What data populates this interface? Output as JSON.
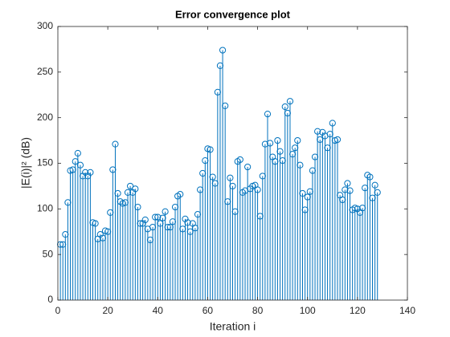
{
  "chart_data": {
    "type": "stem",
    "title": "Error convergence plot",
    "xlabel": "Iteration i",
    "ylabel": "|E(i)|² (dB)",
    "color": "#0072bd",
    "xlim": [
      0,
      140
    ],
    "xticks": [
      0,
      20,
      40,
      60,
      80,
      100,
      120,
      140
    ],
    "ylim": [
      0,
      300
    ],
    "yticks": [
      0,
      50,
      100,
      150,
      200,
      250,
      300
    ],
    "x": [
      1,
      2,
      3,
      4,
      5,
      6,
      7,
      8,
      9,
      10,
      11,
      12,
      13,
      14,
      15,
      16,
      17,
      18,
      19,
      20,
      21,
      22,
      23,
      24,
      25,
      26,
      27,
      28,
      29,
      30,
      31,
      32,
      33,
      34,
      35,
      36,
      37,
      38,
      39,
      40,
      41,
      42,
      43,
      44,
      45,
      46,
      47,
      48,
      49,
      50,
      51,
      52,
      53,
      54,
      55,
      56,
      57,
      58,
      59,
      60,
      61,
      62,
      63,
      64,
      65,
      66,
      67,
      68,
      69,
      70,
      71,
      72,
      73,
      74,
      75,
      76,
      77,
      78,
      79,
      80,
      81,
      82,
      83,
      84,
      85,
      86,
      87,
      88,
      89,
      90,
      91,
      92,
      93,
      94,
      95,
      96,
      97,
      98,
      99,
      100,
      101,
      102,
      103,
      104,
      105,
      106,
      107,
      108,
      109,
      110,
      111,
      112,
      113,
      114,
      115,
      116,
      117,
      118,
      119,
      120,
      121,
      122,
      123,
      124,
      125,
      126,
      127,
      128
    ],
    "values": [
      61,
      61,
      72,
      107,
      142,
      143,
      152,
      161,
      148,
      136,
      140,
      136,
      140,
      85,
      84,
      67,
      72,
      68,
      76,
      75,
      96,
      143,
      171,
      117,
      108,
      106,
      107,
      118,
      125,
      118,
      122,
      102,
      84,
      84,
      88,
      78,
      66,
      80,
      91,
      91,
      84,
      90,
      97,
      80,
      80,
      86,
      102,
      114,
      116,
      78,
      89,
      85,
      75,
      84,
      79,
      94,
      121,
      139,
      153,
      166,
      165,
      135,
      128,
      228,
      257,
      274,
      213,
      108,
      134,
      125,
      97,
      152,
      154,
      118,
      120,
      146,
      122,
      125,
      126,
      121,
      92,
      136,
      171,
      204,
      172,
      157,
      152,
      175,
      163,
      153,
      212,
      205,
      218,
      160,
      167,
      175,
      148,
      117,
      99,
      113,
      119,
      142,
      157,
      185,
      176,
      184,
      180,
      167,
      182,
      194,
      175,
      176,
      115,
      110,
      121,
      128,
      120,
      99,
      101,
      100,
      96,
      101,
      123,
      137,
      135,
      112,
      126,
      118
    ]
  }
}
